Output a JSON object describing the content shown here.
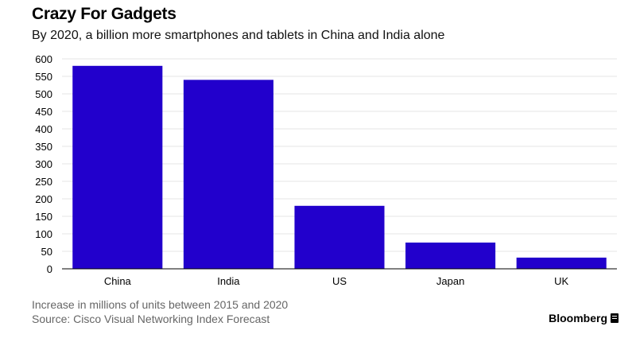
{
  "header": {
    "title": "Crazy For Gadgets",
    "subtitle": "By 2020, a billion more smartphones and tablets in China and India alone"
  },
  "footer": {
    "note": "Increase in millions of units between 2015 and 2020",
    "source": "Source: Cisco Visual Networking Index Forecast",
    "brand": "Bloomberg"
  },
  "colors": {
    "bar": "#2200cc",
    "grid": "#e6e6e6",
    "axis": "#000000"
  },
  "chart_data": {
    "type": "bar",
    "title": "Crazy For Gadgets",
    "subtitle": "By 2020, a billion more smartphones and tablets in China and India alone",
    "categories": [
      "China",
      "India",
      "US",
      "Japan",
      "UK"
    ],
    "values": [
      580,
      540,
      180,
      75,
      32
    ],
    "xlabel": "",
    "ylabel": "",
    "ylim": [
      0,
      600
    ],
    "yticks": [
      0,
      50,
      100,
      150,
      200,
      250,
      300,
      350,
      400,
      450,
      500,
      550,
      600
    ],
    "grid": true,
    "legend": "none"
  }
}
